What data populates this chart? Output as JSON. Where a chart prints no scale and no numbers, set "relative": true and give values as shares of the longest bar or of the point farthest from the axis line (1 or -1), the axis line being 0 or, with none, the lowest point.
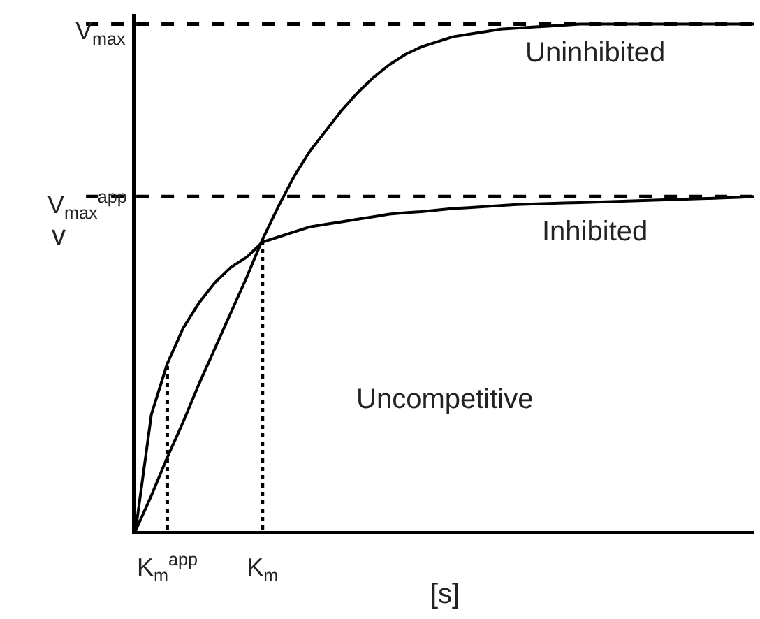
{
  "chart_data": {
    "type": "line",
    "xlabel": "[s]",
    "ylabel": "v",
    "relative": true,
    "categories": [
      null,
      null,
      "K$_{m}$$^{app}$",
      null,
      null,
      null,
      null,
      null,
      "K$_{m}$",
      null,
      null,
      null,
      null,
      null,
      null,
      null,
      null,
      null,
      null,
      null,
      null,
      null,
      null,
      null,
      null,
      null,
      null,
      null,
      null,
      null,
      null,
      null,
      null,
      null,
      null,
      null,
      null,
      null,
      null,
      null
    ],
    "series": [
      {
        "name": "Uninhibited",
        "color": "#000000",
        "values": [
          0,
          0.07,
          0.145,
          0.215,
          0.29,
          0.36,
          0.43,
          0.5,
          0.575,
          0.64,
          0.7,
          0.75,
          0.79,
          0.83,
          0.865,
          0.895,
          0.92,
          0.94,
          0.955,
          0.965,
          0.975,
          0.98,
          0.985,
          0.99,
          0.992,
          0.994,
          0.996,
          0.998,
          1,
          1,
          1,
          1,
          1,
          1,
          1,
          1,
          1,
          1,
          1,
          1
        ]
      },
      {
        "name": "Inhibited",
        "color": "#000000",
        "values": [
          0,
          0.23,
          0.33,
          0.4,
          0.45,
          0.49,
          0.52,
          0.54,
          0.57,
          0.58,
          0.59,
          0.6,
          0.605,
          0.61,
          0.615,
          0.62,
          0.625,
          0.628,
          0.63,
          0.633,
          0.636,
          0.638,
          0.64,
          0.642,
          0.644,
          0.645,
          0.646,
          0.647,
          0.648,
          0.649,
          0.65,
          0.651,
          0.652,
          0.653,
          0.654,
          0.655,
          0.656,
          0.657,
          0.658,
          0.66
        ]
      }
    ],
    "ref_lines": [
      {
        "axis": "y",
        "value": 1,
        "line_style": "dashed",
        "label": "V$_{max}$"
      },
      {
        "axis": "y",
        "value": 0.66,
        "line_style": "dashed",
        "label": "V$_{max}$$^{app}$"
      },
      {
        "axis": "x",
        "value": "K$_{m}$$^{app}$",
        "line_style": "dotted"
      },
      {
        "axis": "x",
        "value": "K$_{m}$",
        "line_style": "dotted"
      }
    ],
    "annotations": [
      "Uncompetitive"
    ],
    "grid": false,
    "legend": false,
    "marker": "none",
    "line_style": "solid"
  }
}
